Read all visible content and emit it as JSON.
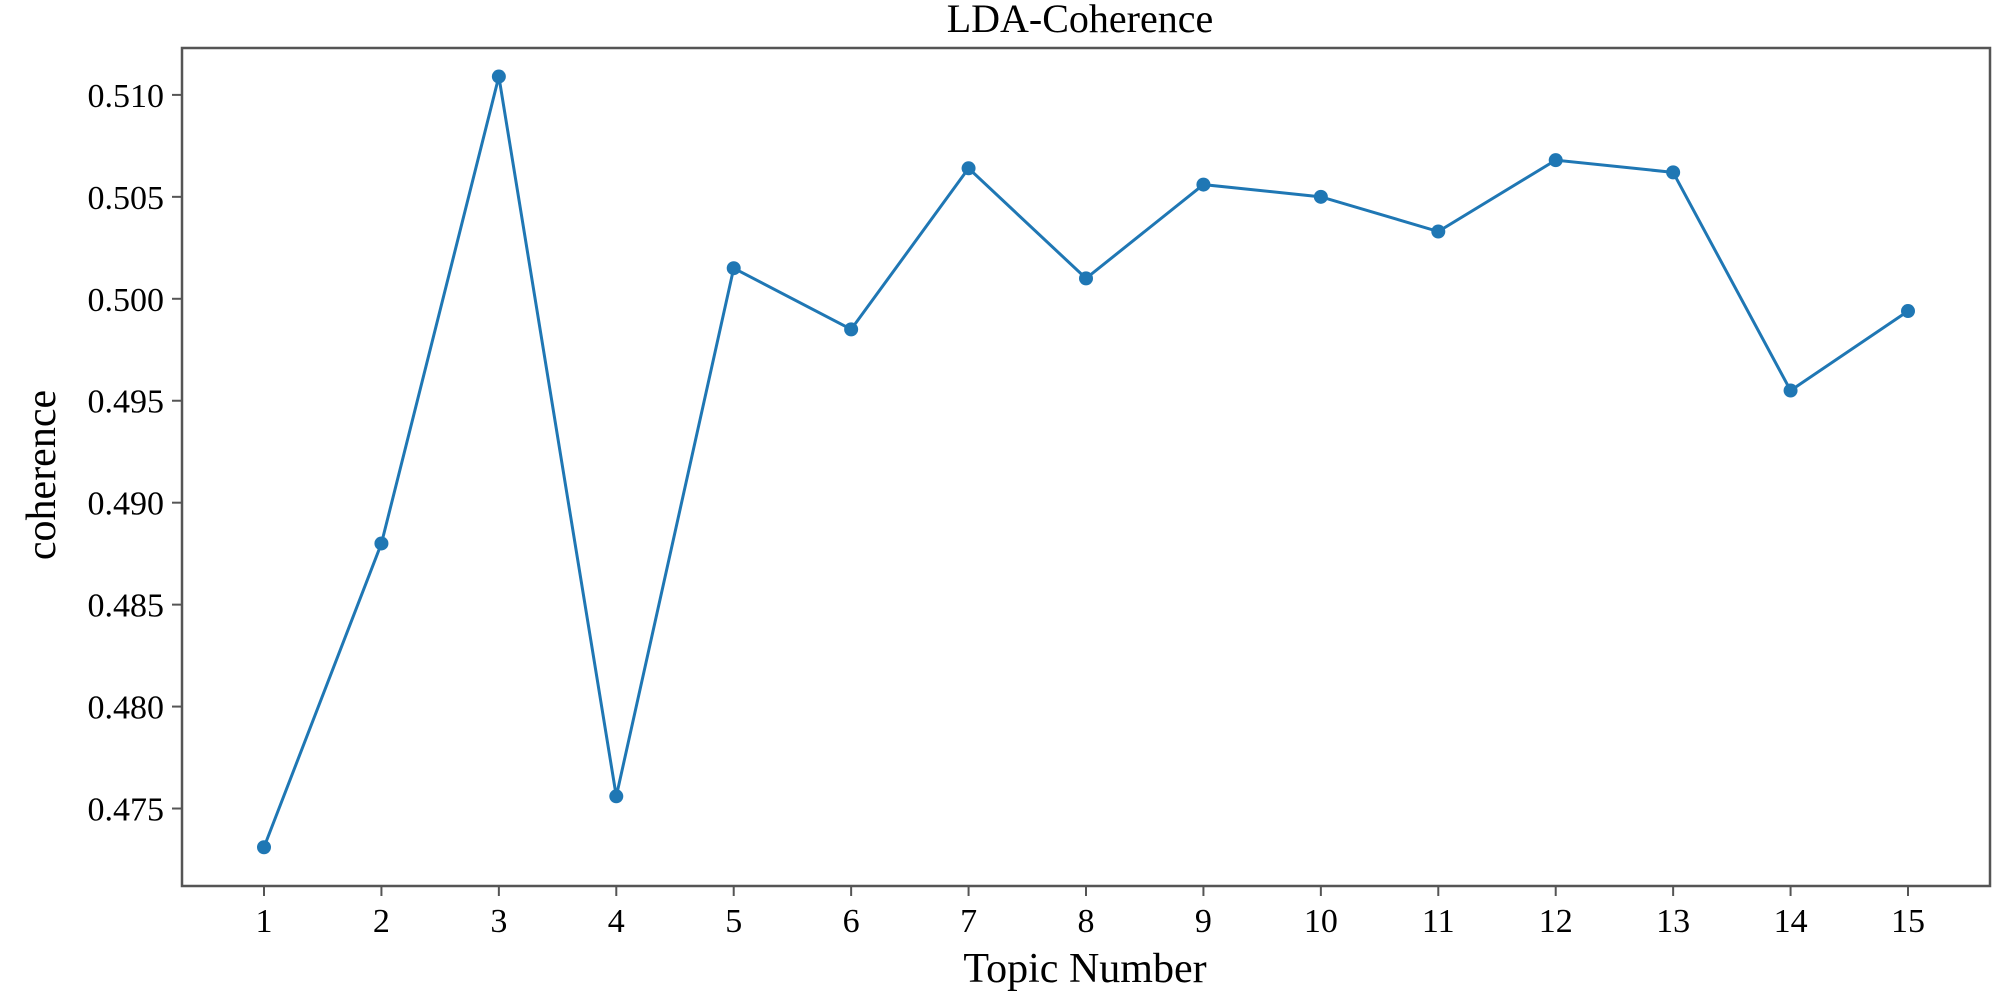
{
  "chart_data": {
    "type": "line",
    "title": "LDA-Coherence",
    "xlabel": "Topic Number",
    "ylabel": "coherence",
    "x": [
      1,
      2,
      3,
      4,
      5,
      6,
      7,
      8,
      9,
      10,
      11,
      12,
      13,
      14,
      15
    ],
    "xticks": [
      "1",
      "2",
      "3",
      "4",
      "5",
      "6",
      "7",
      "8",
      "9",
      "10",
      "11",
      "12",
      "13",
      "14",
      "15"
    ],
    "yticks": [
      "0.475",
      "0.480",
      "0.485",
      "0.490",
      "0.495",
      "0.500",
      "0.505",
      "0.510"
    ],
    "ylim": [
      0.4712,
      0.5123
    ],
    "series": [
      {
        "values": [
          0.4731,
          0.488,
          0.5109,
          0.4756,
          0.5015,
          0.4985,
          0.5064,
          0.501,
          0.5056,
          0.505,
          0.5033,
          0.5068,
          0.5062,
          0.4955,
          0.4994
        ],
        "color": "#1f77b4"
      }
    ],
    "markers": true,
    "grid": false,
    "legend": "none"
  }
}
